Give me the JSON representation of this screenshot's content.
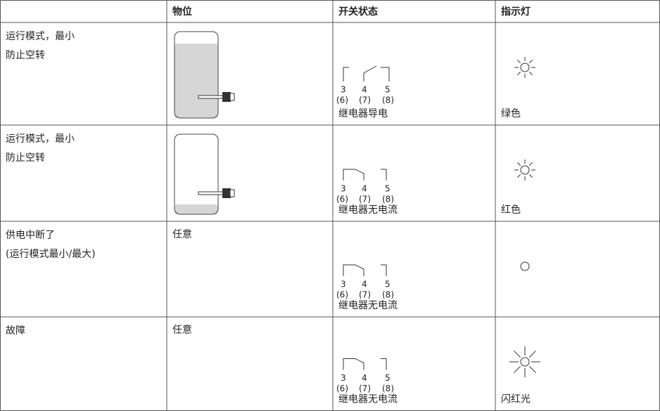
{
  "header": {
    "columns": [
      "物位",
      "开关状态",
      "指示灯"
    ]
  },
  "terminals": {
    "numbers": [
      "3",
      "4",
      "5"
    ],
    "alternates": [
      "(6)",
      "(7)",
      "(8)"
    ]
  },
  "rows": [
    {
      "condition": [
        "运行模式，最小",
        "防止空转"
      ],
      "switch_state": "继电器导电",
      "indicator": "绿色"
    },
    {
      "condition": [
        "运行模式，最小",
        "防止空转"
      ],
      "switch_state": "继电器无电流",
      "indicator": "红色"
    },
    {
      "condition": [
        "供电中断了",
        "(运行模式最小/最大)"
      ],
      "level": "任意",
      "switch_state": "继电器无电流"
    },
    {
      "condition": [
        "故障"
      ],
      "level": "任意",
      "switch_state": "继电器无电流",
      "indicator": "闪红光"
    }
  ]
}
